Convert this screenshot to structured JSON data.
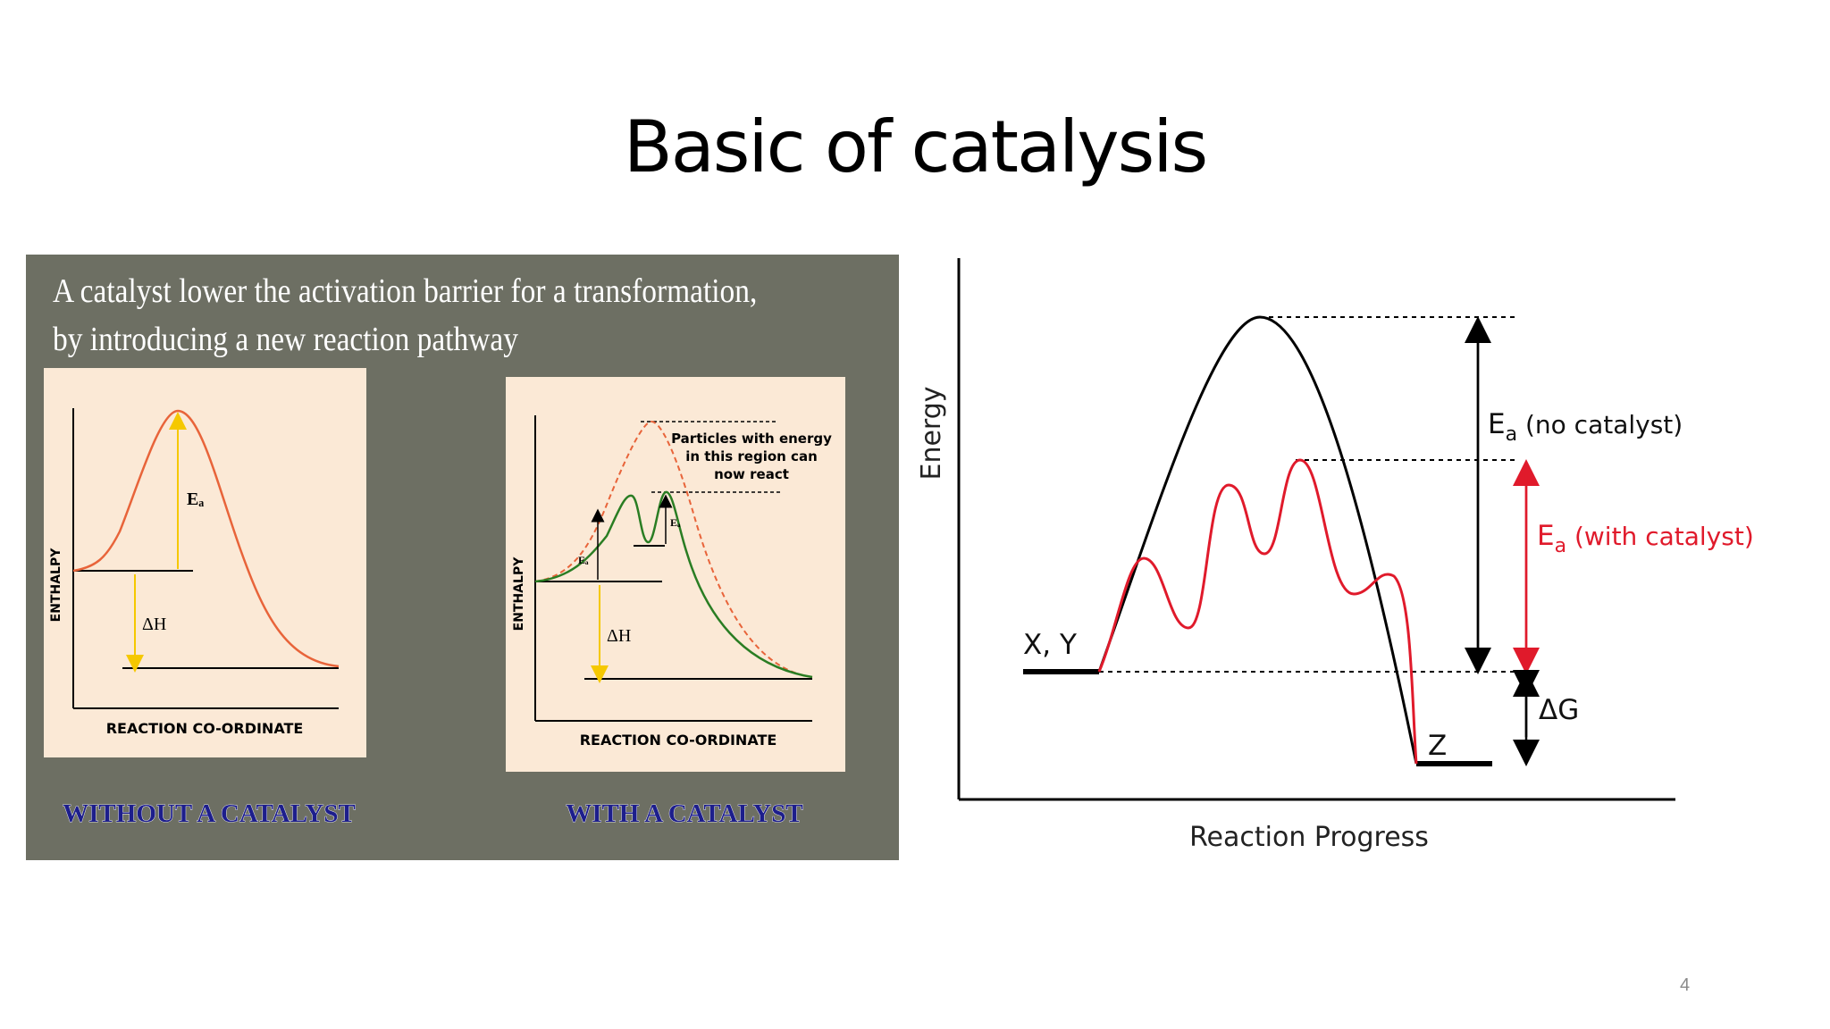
{
  "slide": {
    "title": "Basic of catalysis",
    "page_number": "4"
  },
  "left_panel": {
    "caption": "A catalyst lower the activation barrier for a transformation, by introducing a new reaction pathway",
    "without": {
      "y_label": "ENTHALPY",
      "x_label": "REACTION CO-ORDINATE",
      "ea_label": "Eₐ",
      "dh_label": "ΔH",
      "caption": "WITHOUT A CATALYST"
    },
    "with": {
      "y_label": "ENTHALPY",
      "x_label": "REACTION CO-ORDINATE",
      "ea_label": "Eₐ",
      "ea2_label": "Eₐ",
      "dh_label": "ΔH",
      "note_line1": "Particles with energy",
      "note_line2": "in this region can",
      "note_line3": "now react",
      "caption": "WITH A CATALYST"
    }
  },
  "right_diagram": {
    "y_label": "Energy",
    "x_label": "Reaction Progress",
    "reactants_label": "X, Y",
    "product_label": "Z",
    "ea_no_catalyst_main": "E",
    "ea_no_catalyst_sub": "a",
    "ea_no_catalyst_rest": " (no catalyst)",
    "ea_with_catalyst_main": "E",
    "ea_with_catalyst_sub": "a",
    "ea_with_catalyst_rest": " (with catalyst)",
    "dg_label": "ΔG"
  },
  "colors": {
    "panel_bg": "#6d6f63",
    "inner_bg": "#fbe9d6",
    "orange_curve": "#e8643a",
    "green_curve": "#2a7d23",
    "arrow_yellow": "#f5c800",
    "caption_blue": "#1d1e8c",
    "red_curve": "#e01a2b"
  }
}
